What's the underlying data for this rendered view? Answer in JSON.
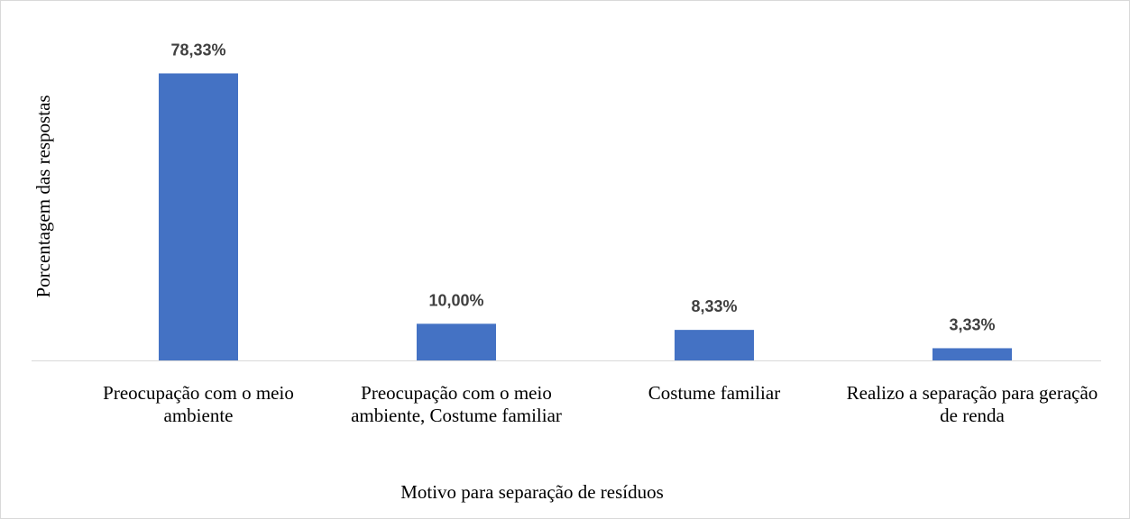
{
  "chart_data": {
    "type": "bar",
    "categories": [
      "Preocupação com o meio ambiente",
      "Preocupação com o meio ambiente, Costume familiar",
      "Costume familiar",
      "Realizo a separação para geração de renda"
    ],
    "values": [
      78.33,
      10.0,
      8.33,
      3.33
    ],
    "value_labels": [
      "78,33%",
      "10,00%",
      "8,33%",
      "3,33%"
    ],
    "color": "#4472c4",
    "ylim": [
      0,
      90
    ],
    "x_label": "Motivo para separação de resíduos",
    "y_label": "Porcentagem das respostas"
  }
}
